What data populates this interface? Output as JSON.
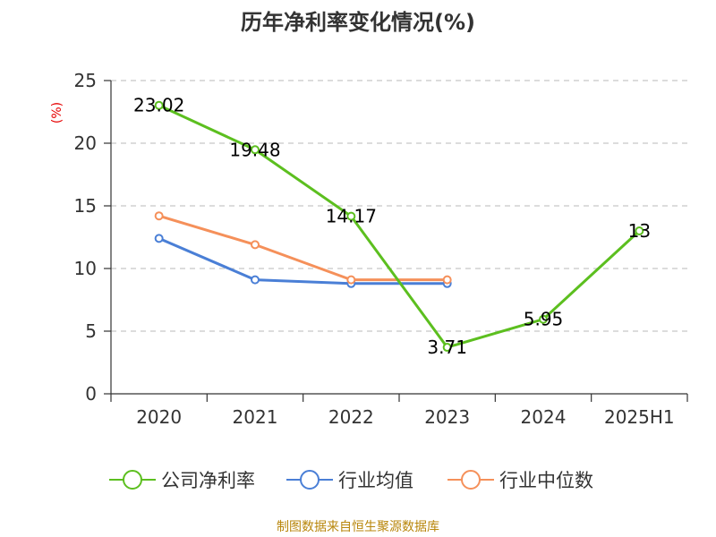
{
  "chart_data": {
    "type": "line",
    "title": "历年净利率变化情况(%)",
    "ylabel": "(%)",
    "xlabel": "",
    "categories": [
      "2020",
      "2021",
      "2022",
      "2023",
      "2024",
      "2025H1"
    ],
    "ylim": [
      0,
      25
    ],
    "yticks": [
      0,
      5,
      10,
      15,
      20,
      25
    ],
    "grid": "horizontal dashed",
    "legend_position": "bottom",
    "series": [
      {
        "name": "公司净利率",
        "color": "#5cbf1f",
        "values": [
          23.02,
          19.48,
          14.17,
          3.71,
          5.95,
          13
        ],
        "labels": [
          "23.02",
          "19.48",
          "14.17",
          "3.71",
          "5.95",
          "13"
        ]
      },
      {
        "name": "行业均值",
        "color": "#4a7fd6",
        "values": [
          12.4,
          9.1,
          8.8,
          8.8,
          null,
          null
        ]
      },
      {
        "name": "行业中位数",
        "color": "#f5905a",
        "values": [
          14.2,
          11.9,
          9.1,
          9.1,
          null,
          null
        ]
      }
    ]
  },
  "source": "制图数据来自恒生聚源数据库"
}
